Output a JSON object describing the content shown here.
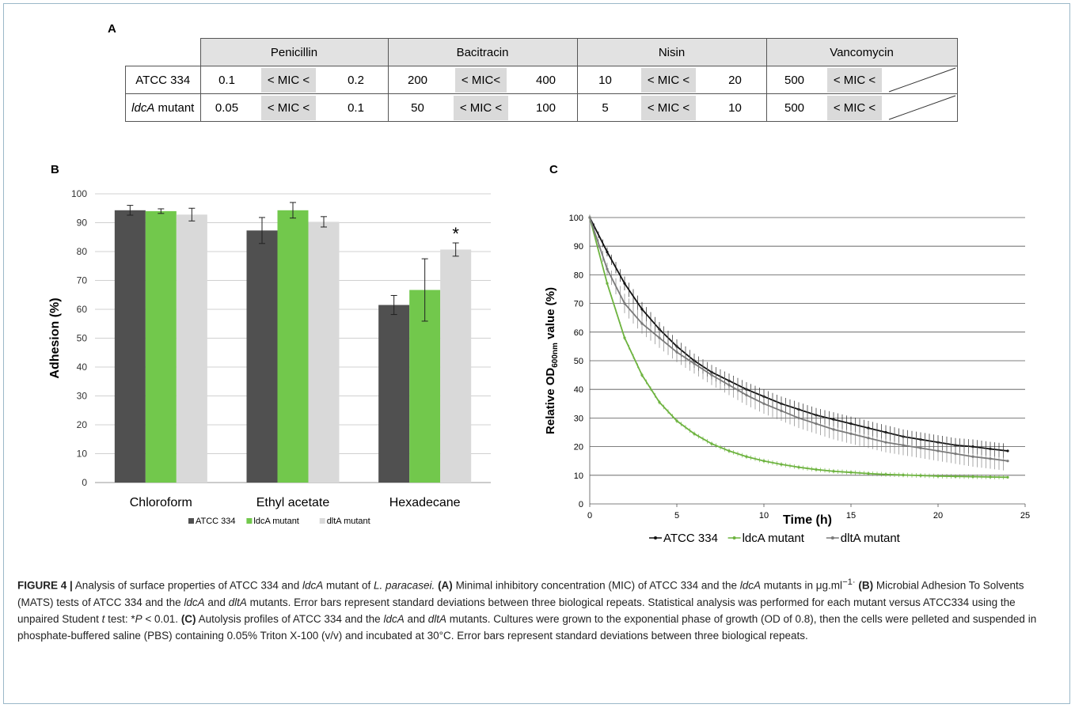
{
  "panels": {
    "a": "A",
    "b": "B",
    "c": "C"
  },
  "table": {
    "headers": [
      "Penicillin",
      "Bacitracin",
      "Nisin",
      "Vancomycin"
    ],
    "rows": [
      {
        "label": "ATCC 334",
        "cells": [
          [
            "0.1",
            "< MIC <",
            "0.2"
          ],
          [
            "200",
            "< MIC<",
            "400"
          ],
          [
            "10",
            "< MIC <",
            "20"
          ],
          [
            "500",
            "< MIC <",
            ""
          ]
        ]
      },
      {
        "label_italic": "ldcA",
        "label_rest": " mutant",
        "cells": [
          [
            "0.05",
            "< MIC <",
            "0.1"
          ],
          [
            "50",
            "< MIC <",
            "100"
          ],
          [
            "5",
            "< MIC <",
            "10"
          ],
          [
            "500",
            "< MIC <",
            ""
          ]
        ]
      }
    ]
  },
  "chart_data": [
    {
      "type": "bar",
      "ylabel": "Adhesion (%)",
      "xlabel": "",
      "ylim": [
        0,
        100
      ],
      "yticks": [
        0,
        10,
        20,
        30,
        40,
        50,
        60,
        70,
        80,
        90,
        100
      ],
      "categories": [
        "Chloroform",
        "Ethyl acetate",
        "Hexadecane"
      ],
      "series": [
        {
          "name": "ATCC 334",
          "color": "#505050",
          "values": [
            94.3,
            87.3,
            61.5
          ],
          "errors": [
            1.7,
            4.5,
            3.3
          ]
        },
        {
          "name": "ldcA mutant",
          "color": "#72c84c",
          "values": [
            94.0,
            94.3,
            66.7
          ],
          "errors": [
            0.8,
            2.7,
            10.8
          ]
        },
        {
          "name": "dltA mutant",
          "color": "#d9d9d9",
          "values": [
            92.8,
            90.3,
            80.7
          ],
          "errors": [
            2.2,
            1.8,
            2.3
          ]
        }
      ],
      "annotations": [
        {
          "text": "*",
          "category": "Hexadecane",
          "series": "dltA mutant"
        }
      ],
      "grid": true,
      "legend": "bottom"
    },
    {
      "type": "line",
      "xlabel": "Time  (h)",
      "ylabel": "Relative OD600nm value (%)",
      "ylabel_parts": [
        "Relative OD",
        "600nm",
        " value (%)"
      ],
      "xlim": [
        0,
        25
      ],
      "ylim": [
        0,
        100
      ],
      "xticks": [
        0,
        5,
        10,
        15,
        20,
        25
      ],
      "yticks": [
        0,
        10,
        20,
        30,
        40,
        50,
        60,
        70,
        80,
        90,
        100
      ],
      "x": [
        0,
        1,
        2,
        3,
        4,
        5,
        6,
        7,
        8,
        9,
        10,
        11,
        12,
        13,
        14,
        15,
        16,
        17,
        18,
        19,
        20,
        21,
        22,
        23,
        24
      ],
      "series": [
        {
          "name": "ATCC 334",
          "color": "#111111",
          "values": [
            100,
            88,
            77,
            68,
            61,
            55,
            50,
            46,
            43,
            40,
            37.5,
            35,
            33,
            31,
            29.5,
            28,
            26.5,
            25,
            23.5,
            22.5,
            21.5,
            20.5,
            20,
            19.2,
            18.5
          ],
          "error": 2.5
        },
        {
          "name": "ldcA mutant",
          "color": "#6db33f",
          "values": [
            100,
            77,
            58,
            45,
            35.5,
            29,
            24.5,
            21,
            18.5,
            16.5,
            15,
            13.8,
            12.8,
            12,
            11.4,
            11,
            10.6,
            10.3,
            10.1,
            9.9,
            9.7,
            9.6,
            9.5,
            9.4,
            9.3
          ],
          "error": 0.8
        },
        {
          "name": "dltA mutant",
          "color": "#7a7a7a",
          "values": [
            100,
            82,
            70,
            63,
            58,
            53,
            49,
            45,
            41.5,
            38,
            35,
            32.5,
            30,
            28,
            26,
            24.5,
            23,
            21.5,
            20.5,
            19.5,
            18.5,
            17.5,
            16.5,
            15.8,
            15
          ],
          "error": 3.5
        }
      ],
      "grid": true,
      "legend": "bottom"
    }
  ],
  "caption": {
    "fig": "FIGURE 4 |",
    "s1": " Analysis of surface properties of ATCC 334 and ",
    "i1": "ldcA",
    "s2": " mutant of ",
    "i2": "L. paracasei.",
    "b_a": " (A)",
    "s3": " Minimal inhibitory concentration (MIC) of ATCC 334 and the ",
    "i3": "ldcA",
    "s4": " mutants in μg.ml",
    "sup1": "−1·",
    "b_b": " (B)",
    "s5": " Microbial Adhesion To Solvents (MATS) tests of ATCC 334 and the ",
    "i4": "ldcA",
    "s6": " and ",
    "i5": "dltA",
    "s7": " mutants. Error bars represent standard deviations between three biological repeats. Statistical analysis was performed for each mutant versus ATCC334 using the unpaired Student ",
    "i6": "t",
    "s8": " test: *",
    "i7": "P",
    "s9": " < 0.01.",
    "b_c": " (C)",
    "s10": " Autolysis profiles of ATCC 334 and the ",
    "i8": "ldcA",
    "s11": " and ",
    "i9": "dltA",
    "s12": " mutants. Cultures were grown to the exponential phase of growth (OD of 0.8), then the cells were pelleted and suspended in phosphate-buffered saline (PBS) containing 0.05% Triton X-100 (v/v) and incubated at 30°C. Error bars represent standard deviations between three biological repeats."
  }
}
